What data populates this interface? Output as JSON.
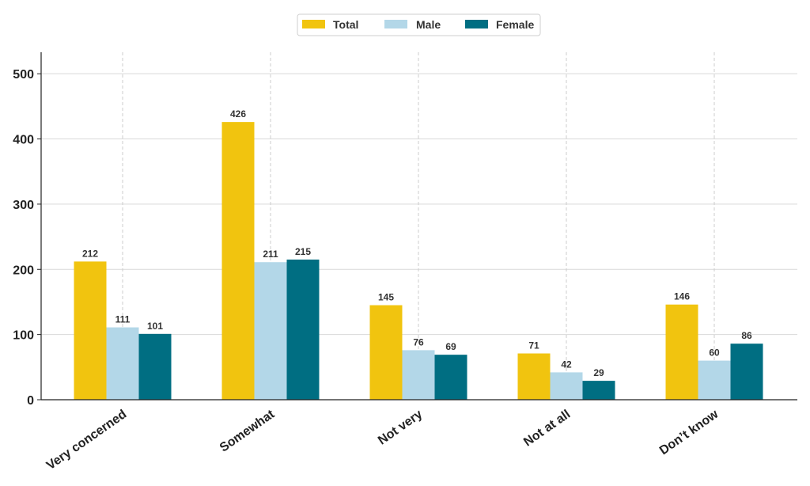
{
  "chart_data": {
    "type": "bar",
    "categories": [
      "Very concerned",
      "Somewhat",
      "Not very",
      "Not at all",
      "Don’t know"
    ],
    "series": [
      {
        "name": "Total",
        "color": "#F1C40F",
        "values": [
          212,
          426,
          145,
          71,
          146
        ]
      },
      {
        "name": "Male",
        "color": "#B3D7E8",
        "values": [
          111,
          211,
          76,
          42,
          60
        ]
      },
      {
        "name": "Female",
        "color": "#006E82",
        "values": [
          101,
          215,
          69,
          29,
          86
        ]
      }
    ],
    "yticks": [
      0,
      100,
      200,
      300,
      400,
      500
    ],
    "ylim": [
      0,
      533
    ],
    "legend_position": "top-center",
    "grid": {
      "horizontal": true,
      "vertical": true
    },
    "title": "",
    "xlabel": "",
    "ylabel": ""
  }
}
